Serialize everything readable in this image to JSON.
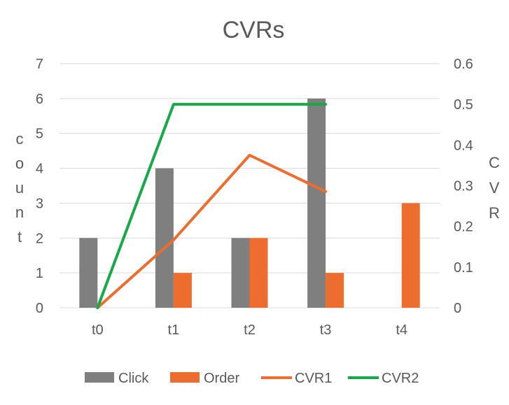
{
  "chart_data": {
    "type": "bar",
    "title": "CVRs",
    "categories": [
      "t0",
      "t1",
      "t2",
      "t3",
      "t4"
    ],
    "bar_series": [
      {
        "name": "Click",
        "color": "#7f7f7f",
        "values": [
          2,
          4,
          2,
          6,
          0
        ]
      },
      {
        "name": "Order",
        "color": "#ed6d2f",
        "values": [
          0,
          1,
          2,
          1,
          3
        ]
      }
    ],
    "line_series": [
      {
        "name": "CVR1",
        "color": "#ed6d2f",
        "values": [
          0,
          0.166667,
          0.375,
          0.285714,
          null
        ]
      },
      {
        "name": "CVR2",
        "color": "#18a84a",
        "values": [
          0,
          0.5,
          0.5,
          0.5,
          null
        ]
      }
    ],
    "y_left": {
      "label": "count",
      "lim": [
        0,
        7
      ],
      "ticks": [
        0,
        1,
        2,
        3,
        4,
        5,
        6,
        7
      ]
    },
    "y_right": {
      "label": "CVR",
      "lim": [
        0,
        0.6
      ],
      "ticks": [
        "0",
        "0.1",
        "0.2",
        "0.3",
        "0.4",
        "0.5",
        "0.6"
      ]
    },
    "grid": true,
    "legend_position": "bottom"
  }
}
